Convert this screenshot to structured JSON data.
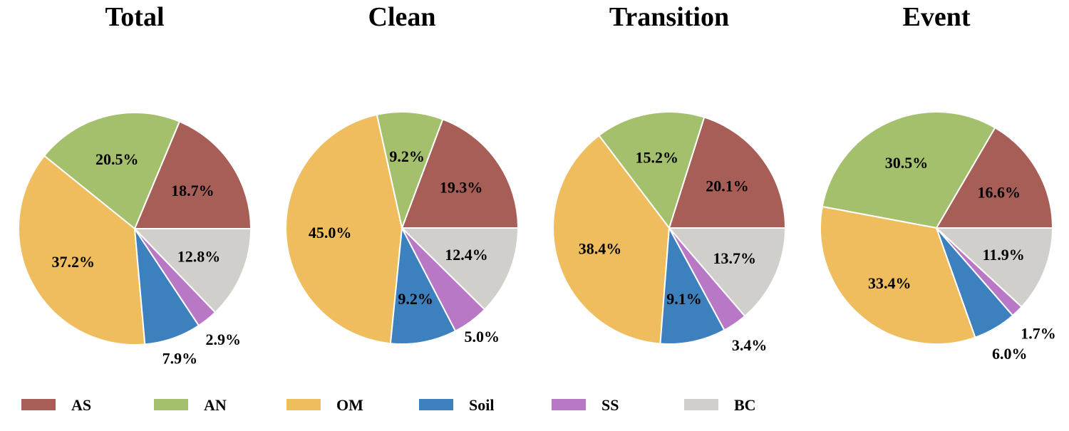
{
  "chart_data": [
    {
      "type": "pie",
      "title": "Total",
      "categories": [
        "AS",
        "AN",
        "OM",
        "Soil",
        "SS",
        "BC"
      ],
      "values": [
        18.7,
        20.5,
        37.2,
        7.9,
        2.9,
        12.8
      ],
      "labels": [
        "18.7%",
        "20.5%",
        "37.2%",
        "7.9%",
        "2.9%",
        "12.8%"
      ]
    },
    {
      "type": "pie",
      "title": "Clean",
      "categories": [
        "AS",
        "AN",
        "OM",
        "Soil",
        "SS",
        "BC"
      ],
      "values": [
        19.3,
        9.2,
        45.0,
        9.2,
        5.0,
        12.4
      ],
      "labels": [
        "19.3%",
        "9.2%",
        "45.0%",
        "9.2%",
        "5.0%",
        "12.4%"
      ]
    },
    {
      "type": "pie",
      "title": "Transition",
      "categories": [
        "AS",
        "AN",
        "OM",
        "Soil",
        "SS",
        "BC"
      ],
      "values": [
        20.1,
        15.2,
        38.4,
        9.1,
        3.4,
        13.7
      ],
      "labels": [
        "20.1%",
        "15.2%",
        "38.4%",
        "9.1%",
        "3.4%",
        "13.7%"
      ]
    },
    {
      "type": "pie",
      "title": "Event",
      "categories": [
        "AS",
        "AN",
        "OM",
        "Soil",
        "SS",
        "BC"
      ],
      "values": [
        16.6,
        30.5,
        33.4,
        6.0,
        1.7,
        11.9
      ],
      "labels": [
        "16.6%",
        "30.5%",
        "33.4%",
        "6.0%",
        "1.7%",
        "11.9%"
      ]
    }
  ],
  "legend": {
    "placement": "bottom",
    "items": [
      {
        "label": "AS",
        "color": "#A65E57"
      },
      {
        "label": "AN",
        "color": "#A5C06C"
      },
      {
        "label": "OM",
        "color": "#EFBD5E"
      },
      {
        "label": "Soil",
        "color": "#3D80BE"
      },
      {
        "label": "SS",
        "color": "#B878C6"
      },
      {
        "label": "BC",
        "color": "#D0CFCC"
      }
    ]
  }
}
